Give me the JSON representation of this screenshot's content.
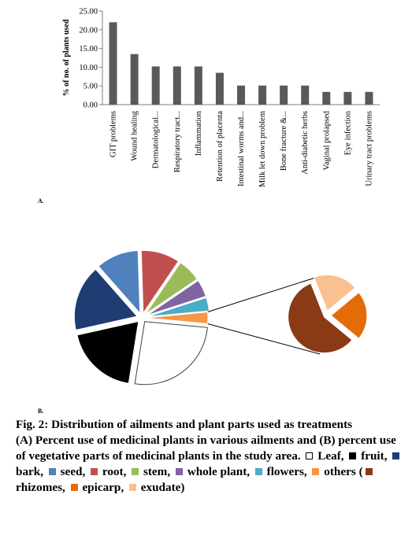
{
  "panel_labels": {
    "a": "A.",
    "b": "B."
  },
  "caption": {
    "title": "Fig. 2: Distribution of ailments and plant parts used as treatments",
    "body_prefix": "(A) Percent use of medicinal plants in various ailments and (B) percent use of vegetative parts of medicinal plants in the study area.",
    "legend": [
      {
        "symbol": "□",
        "label": "Leaf,",
        "color": "#ffffff"
      },
      {
        "symbol": "■",
        "label": "fruit,",
        "color": "#000000"
      },
      {
        "symbol": "■",
        "label": "bark,",
        "color": "#1f3d73"
      },
      {
        "symbol": "■",
        "label": "seed,",
        "color": "#4f81bd"
      },
      {
        "symbol": "■",
        "label": "root,",
        "color": "#c0504d"
      },
      {
        "symbol": "■",
        "label": "stem,",
        "color": "#9bbb59"
      },
      {
        "symbol": "■",
        "label": "whole plant,",
        "color": "#8064a2"
      },
      {
        "symbol": "■",
        "label": "flowers,",
        "color": "#4bacc6"
      },
      {
        "symbol": "■",
        "label": "others",
        "color": "#f79646"
      }
    ],
    "others_open": "(",
    "others_legend": [
      {
        "symbol": "■",
        "label": "rhizomes,",
        "color": "#8b3a16"
      },
      {
        "symbol": "■",
        "label": "epicarp,",
        "color": "#e36c09"
      },
      {
        "symbol": "■",
        "label": "exudate)",
        "color": "#fac090"
      }
    ]
  },
  "chart_data": [
    {
      "type": "bar",
      "ylabel": "% of no. of plants used",
      "ylim": [
        0,
        25
      ],
      "yticks": [
        "0.00",
        "5.00",
        "10.00",
        "15.00",
        "20.00",
        "25.00"
      ],
      "bar_color": "#595959",
      "categories": [
        "GIT problems",
        "Wound healing",
        "Dermatological...",
        "Respiratory tract...",
        "Inflammation",
        "Retention of placenta",
        "Intestinal worms and...",
        "Milk let down problem",
        "Bone fracture &...",
        "Anti-diabetic herbs",
        "Vaginal prolapsed",
        "Eye infection",
        "Urinary tract problems"
      ],
      "values": [
        22.0,
        13.5,
        10.2,
        10.2,
        10.2,
        8.5,
        5.1,
        5.1,
        5.1,
        5.1,
        3.4,
        3.4,
        3.4
      ]
    },
    {
      "type": "pie",
      "title": "",
      "series": [
        {
          "label": "Leaf",
          "value": 26,
          "color": "#ffffff"
        },
        {
          "label": "fruit",
          "value": 19,
          "color": "#000000"
        },
        {
          "label": "bark",
          "value": 17,
          "color": "#1f3d73"
        },
        {
          "label": "seed",
          "value": 11,
          "color": "#4f81bd"
        },
        {
          "label": "root",
          "value": 10,
          "color": "#c0504d"
        },
        {
          "label": "stem",
          "value": 6,
          "color": "#9bbb59"
        },
        {
          "label": "whole plant",
          "value": 4.5,
          "color": "#8064a2"
        },
        {
          "label": "flowers",
          "value": 3.5,
          "color": "#4bacc6"
        },
        {
          "label": "others",
          "value": 3,
          "color": "#f79646"
        }
      ],
      "breakdown_of": "others",
      "breakdown": [
        {
          "label": "rhizomes",
          "value": 58,
          "color": "#8b3a16"
        },
        {
          "label": "epicarp",
          "value": 22,
          "color": "#e36c09"
        },
        {
          "label": "exudate",
          "value": 20,
          "color": "#fac090"
        }
      ]
    }
  ]
}
